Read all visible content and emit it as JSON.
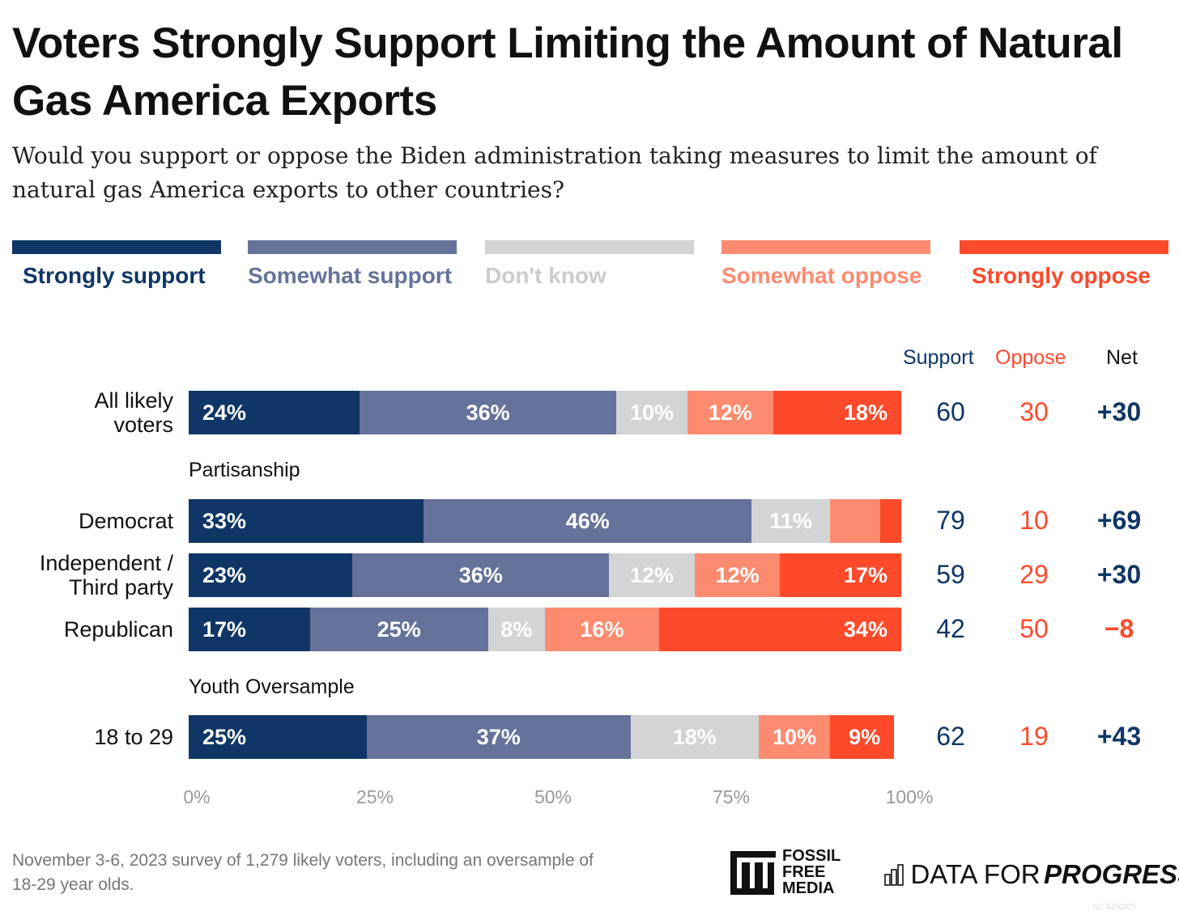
{
  "title": "Voters Strongly Support Limiting the Amount of Natural Gas America Exports",
  "subtitle": "Would you support or oppose the Biden administration taking measures to limit the amount of natural gas America exports to other countries?",
  "colors": {
    "strongly_support": "#0f3666",
    "somewhat_support": "#65739a",
    "dont_know": "#d3d4d6",
    "somewhat_oppose": "#fc8b70",
    "strongly_oppose": "#fc4a2b"
  },
  "chart_data": {
    "type": "bar",
    "orientation": "horizontal",
    "stacked": true,
    "legend": [
      "Strongly support",
      "Somewhat support",
      "Don't know",
      "Somewhat oppose",
      "Strongly oppose"
    ],
    "legend_placement": "top",
    "columns": [
      "Support",
      "Oppose",
      "Net"
    ],
    "sections": [
      {
        "label": "Partisanship",
        "before_row": 1
      },
      {
        "label": "Youth Oversample",
        "before_row": 4
      }
    ],
    "rows": [
      {
        "label": "All likely voters",
        "values": [
          24,
          36,
          10,
          12,
          18
        ],
        "labels": [
          "24%",
          "36%",
          "10%",
          "12%",
          "18%"
        ],
        "support": "60",
        "oppose": "30",
        "net": "+30",
        "net_negative": false
      },
      {
        "label": "Democrat",
        "values": [
          33,
          46,
          11,
          7,
          3
        ],
        "labels": [
          "33%",
          "46%",
          "11%",
          "",
          ""
        ],
        "support": "79",
        "oppose": "10",
        "net": "+69",
        "net_negative": false
      },
      {
        "label": "Independent / Third party",
        "values": [
          23,
          36,
          12,
          12,
          17
        ],
        "labels": [
          "23%",
          "36%",
          "12%",
          "12%",
          "17%"
        ],
        "support": "59",
        "oppose": "29",
        "net": "+30",
        "net_negative": false
      },
      {
        "label": "Republican",
        "values": [
          17,
          25,
          8,
          16,
          34
        ],
        "labels": [
          "17%",
          "25%",
          "8%",
          "16%",
          "34%"
        ],
        "support": "42",
        "oppose": "50",
        "net": "−8",
        "net_negative": true
      },
      {
        "label": "18 to 29",
        "values": [
          25,
          37,
          18,
          10,
          9
        ],
        "labels": [
          "25%",
          "37%",
          "18%",
          "10%",
          "9%"
        ],
        "support": "62",
        "oppose": "19",
        "net": "+43",
        "net_negative": false
      }
    ],
    "xticks": [
      "0%",
      "25%",
      "50%",
      "75%",
      "100%"
    ],
    "xlim": [
      0,
      100
    ]
  },
  "footer": {
    "note": "November 3-6, 2023 survey of 1,279 likely voters, including an oversample of 18-29 year olds.",
    "logo1": "FOSSIL FREE MEDIA",
    "logo2_a": "DATA FOR",
    "logo2_b": "PROGRESS",
    "id": "ID: SZX2C5"
  }
}
